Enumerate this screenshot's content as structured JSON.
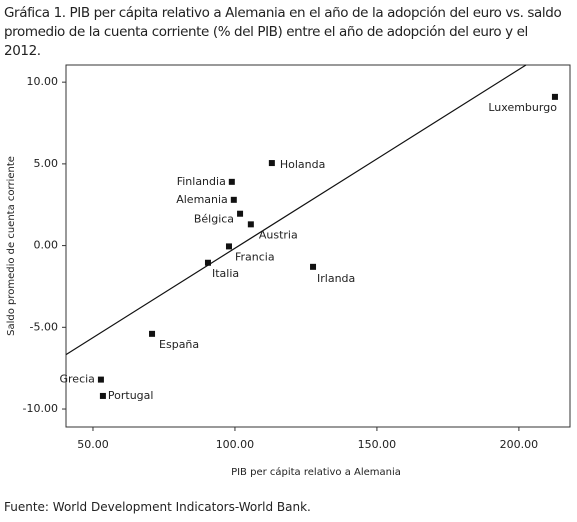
{
  "chart_data": {
    "type": "scatter",
    "title": "Gráfica 1. PIB per cápita relativo a Alemania en el año de la adopción del euro vs. saldo promedio de la cuenta corriente (% del PIB) entre el año de adopción del euro y el 2012.",
    "x_label": "PIB per cápita relativo a Alemania",
    "y_label": "Saldo promedio de cuenta corriente",
    "source": "Fuente: World Development Indicators-World Bank.",
    "color": "#111111",
    "labels": [
      "Luxemburgo",
      "Holanda",
      "Finlandia",
      "Alemania",
      "Bélgica",
      "Austria",
      "Francia",
      "Italia",
      "Irlanda",
      "España",
      "Grecia",
      "Portugal"
    ],
    "x": [
      212.7,
      113.0,
      98.9,
      99.6,
      101.8,
      105.6,
      97.9,
      90.5,
      127.5,
      70.8,
      52.8,
      53.5
    ],
    "values": [
      9.1,
      5.05,
      3.9,
      2.8,
      1.95,
      1.3,
      -0.05,
      -1.05,
      -1.3,
      -5.4,
      -8.2,
      -9.2
    ],
    "trendline": {
      "x": [
        40.5,
        202.5
      ],
      "y": [
        -6.67,
        11.05
      ]
    },
    "xlim": [
      40.5,
      218
    ],
    "ylim": [
      -11.1,
      11.05
    ],
    "xticks": [
      {
        "value": 50,
        "label": "50.00"
      },
      {
        "value": 100,
        "label": "100.00"
      },
      {
        "value": 150,
        "label": "150.00"
      },
      {
        "value": 200,
        "label": "200.00"
      }
    ],
    "yticks": [
      {
        "value": 10,
        "label": "10.00"
      },
      {
        "value": 5,
        "label": "5.00"
      },
      {
        "value": 0,
        "label": "0.00"
      },
      {
        "value": -5,
        "label": "-5.00"
      },
      {
        "value": -10,
        "label": "-10.00"
      }
    ]
  }
}
